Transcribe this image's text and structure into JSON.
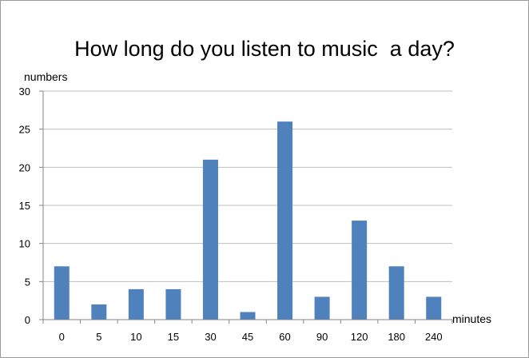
{
  "chart_data": {
    "type": "bar",
    "title": "How long do you listen to music  a day?",
    "xlabel": "minutes",
    "ylabel": "numbers",
    "categories": [
      "0",
      "5",
      "10",
      "15",
      "30",
      "45",
      "60",
      "90",
      "120",
      "180",
      "240"
    ],
    "values": [
      7,
      2,
      4,
      4,
      21,
      1,
      26,
      3,
      13,
      7,
      3
    ],
    "ylim": [
      0,
      30
    ],
    "yticks": [
      0,
      5,
      10,
      15,
      20,
      25,
      30
    ],
    "grid": true,
    "legend": "none",
    "bar_color": "#4f81bd",
    "grid_color": "#bfbfbf"
  }
}
